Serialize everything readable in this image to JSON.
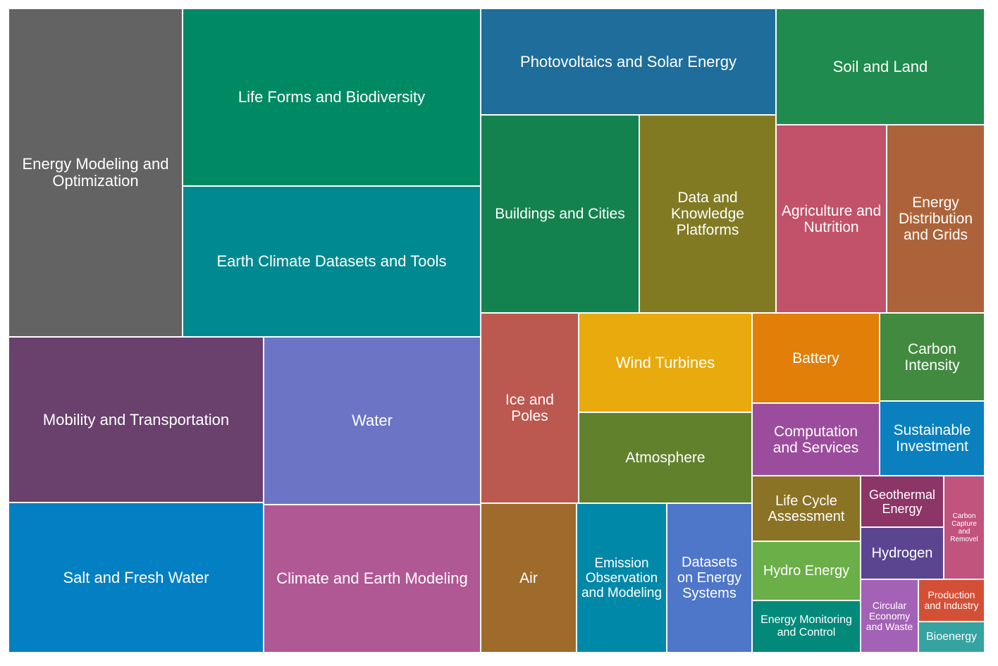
{
  "chart_data": {
    "type": "treemap",
    "title": "",
    "items": [
      {
        "label": "Energy Modeling and Optimization",
        "color": "#636363"
      },
      {
        "label": "Life Forms and Biodiversity",
        "color": "#008a63"
      },
      {
        "label": "Earth Climate Datasets and Tools",
        "color": "#008990"
      },
      {
        "label": "Photovoltaics and Solar Energy",
        "color": "#1f6d9b"
      },
      {
        "label": "Soil and Land",
        "color": "#1f8b4e"
      },
      {
        "label": "Buildings and Cities",
        "color": "#14824f"
      },
      {
        "label": "Data and Knowledge Platforms",
        "color": "#817a23"
      },
      {
        "label": "Agriculture and Nutrition",
        "color": "#c25269"
      },
      {
        "label": "Energy Distribution and Grids",
        "color": "#ad6339"
      },
      {
        "label": "Mobility and Transportation",
        "color": "#6a406d"
      },
      {
        "label": "Water",
        "color": "#6b74c5"
      },
      {
        "label": "Salt and Fresh Water",
        "color": "#0380c3"
      },
      {
        "label": "Climate and Earth Modeling",
        "color": "#b05893"
      },
      {
        "label": "Ice and Poles",
        "color": "#bb584f"
      },
      {
        "label": "Wind Turbines",
        "color": "#e8aa0d"
      },
      {
        "label": "Atmosphere",
        "color": "#61812d"
      },
      {
        "label": "Battery",
        "color": "#e17f09"
      },
      {
        "label": "Carbon Intensity",
        "color": "#428a3f"
      },
      {
        "label": "Computation and Services",
        "color": "#9b4c9c"
      },
      {
        "label": "Sustainable Investment",
        "color": "#0a80bf"
      },
      {
        "label": "Air",
        "color": "#9e6b2b"
      },
      {
        "label": "Emission Observation and Modeling",
        "color": "#0088a8"
      },
      {
        "label": "Datasets on Energy Systems",
        "color": "#4e76c9"
      },
      {
        "label": "Life Cycle Assessment",
        "color": "#8b7326"
      },
      {
        "label": "Geothermal Energy",
        "color": "#8c3567"
      },
      {
        "label": "Carbon Capture and Removel",
        "color": "#c0547c"
      },
      {
        "label": "Hydrogen",
        "color": "#5b4591"
      },
      {
        "label": "Hydro Energy",
        "color": "#6aaf47"
      },
      {
        "label": "Energy Monitoring and Control",
        "color": "#03897a"
      },
      {
        "label": "Circular Economy and Waste",
        "color": "#a462b6"
      },
      {
        "label": "Production and Industry",
        "color": "#d35037"
      },
      {
        "label": "Bioenergy",
        "color": "#35a3a1"
      }
    ]
  }
}
